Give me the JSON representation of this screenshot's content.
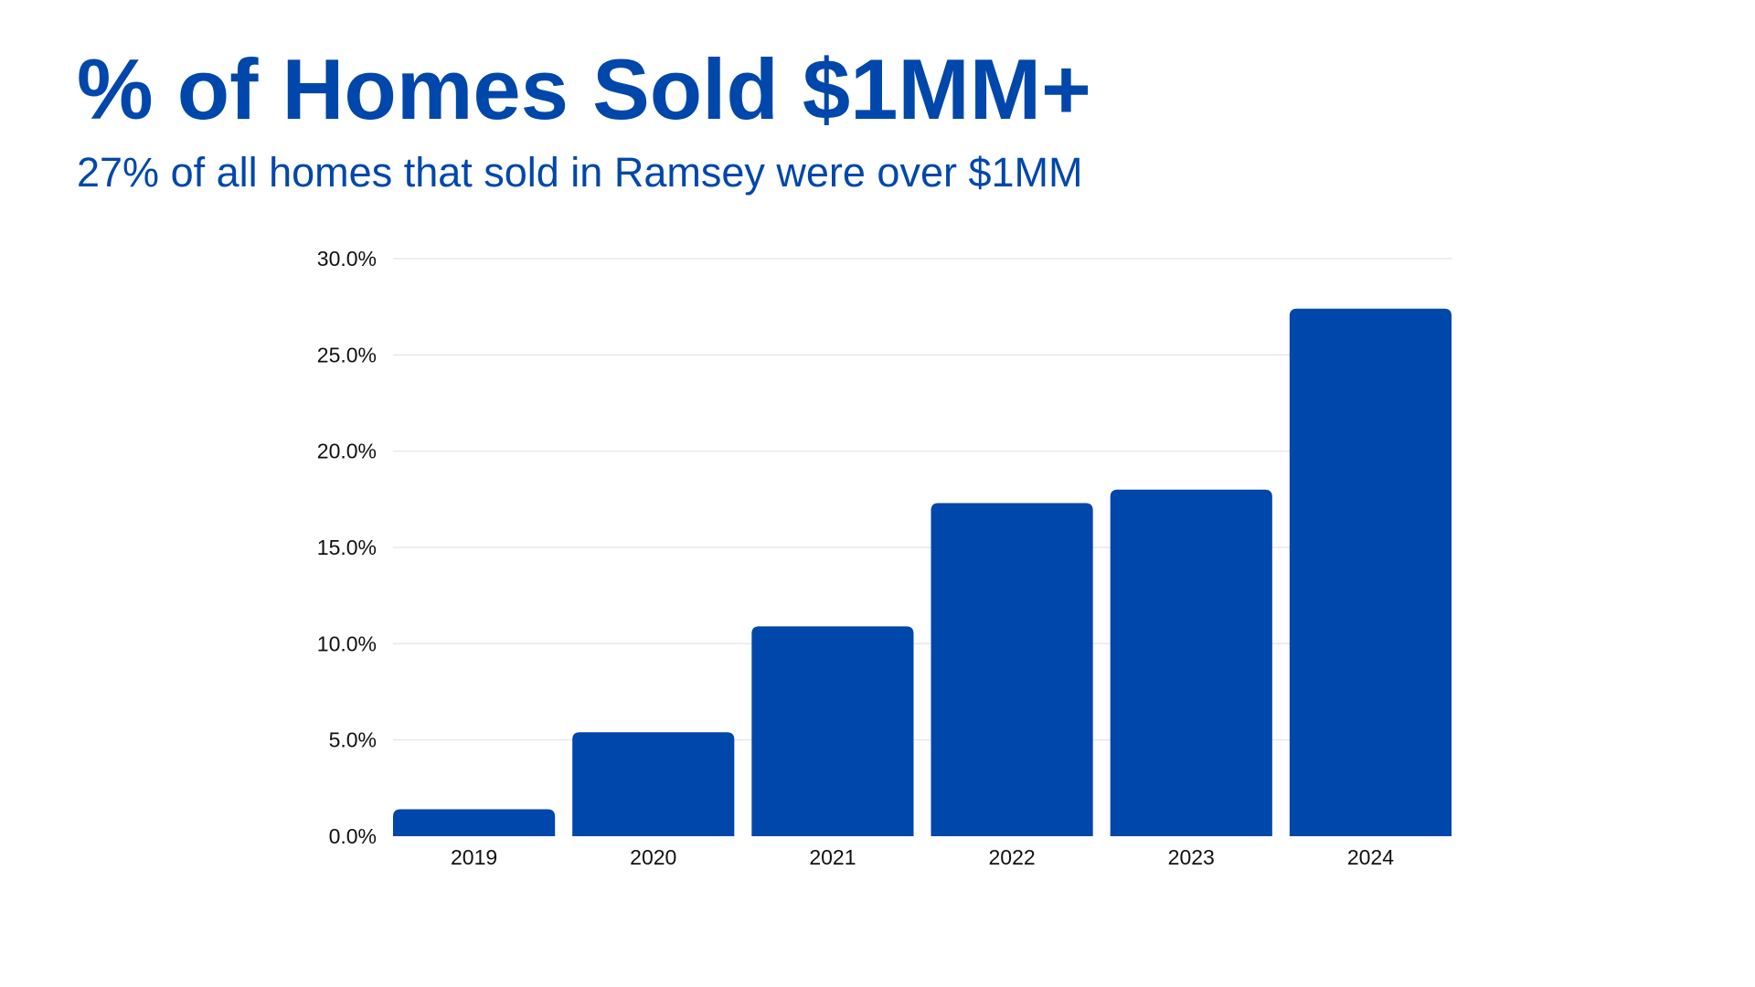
{
  "header": {
    "title": "% of Homes Sold $1MM+",
    "subtitle": "27% of all homes that sold in Ramsey were over $1MM"
  },
  "colors": {
    "accent": "#0047AB",
    "gridline": "#E3E3E3",
    "text": "#111111"
  },
  "chart_data": {
    "type": "bar",
    "categories": [
      "2019",
      "2020",
      "2021",
      "2022",
      "2023",
      "2024"
    ],
    "values": [
      1.4,
      5.4,
      10.9,
      17.3,
      18.0,
      27.4
    ],
    "title": "",
    "xlabel": "",
    "ylabel": "",
    "ylim": [
      0,
      30
    ],
    "yticks": [
      0,
      5,
      10,
      15,
      20,
      25,
      30
    ],
    "ytick_labels": [
      "0.0%",
      "5.0%",
      "10.0%",
      "15.0%",
      "20.0%",
      "25.0%",
      "30.0%"
    ],
    "grid": true,
    "legend": "none"
  }
}
